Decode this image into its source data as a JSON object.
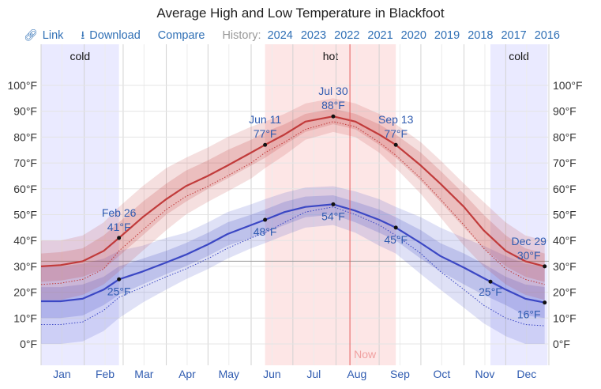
{
  "title": "Average High and Low Temperature in Blackfoot",
  "toolbar": {
    "link_icon": "link-icon",
    "link_label": "Link",
    "download_icon": "download-icon",
    "download_label": "Download",
    "compare_label": "Compare",
    "history_label": "History:",
    "years": [
      "2024",
      "2023",
      "2022",
      "2021",
      "2020",
      "2019",
      "2018",
      "2017",
      "2016"
    ]
  },
  "colors": {
    "high": "#c13b3b",
    "low": "#3b47c4",
    "hot_band": "#fde6e6",
    "cold_band": "#eaeaff",
    "now_line": "#e25a5a",
    "annotation": "#2f5bb0"
  },
  "chart_data": {
    "type": "line",
    "title": "Average High and Low Temperature in Blackfoot",
    "y_unit": "°F",
    "ylim": [
      -10,
      110
    ],
    "y_ticks": [
      "100°F",
      "90°F",
      "80°F",
      "70°F",
      "60°F",
      "50°F",
      "40°F",
      "30°F",
      "20°F",
      "10°F",
      "0°F"
    ],
    "y_tick_values": [
      100,
      90,
      80,
      70,
      60,
      50,
      40,
      30,
      20,
      10,
      0
    ],
    "months": [
      "Jan",
      "Feb",
      "Mar",
      "Apr",
      "May",
      "Jun",
      "Jul",
      "Aug",
      "Sep",
      "Oct",
      "Nov",
      "Dec"
    ],
    "grid": true,
    "reference_line_y": 32,
    "seasons": [
      {
        "label": "cold",
        "start": "Jan 1",
        "end": "Feb 26"
      },
      {
        "label": "hot",
        "start": "Jun 11",
        "end": "Sep 13"
      },
      {
        "label": "cold",
        "start": "Nov 20",
        "end": "Dec 31"
      }
    ],
    "now_label": "Now",
    "now_date": "Aug 11",
    "series": [
      {
        "name": "high",
        "x": [
          "Jan 1",
          "Jan 15",
          "Jan 31",
          "Feb 15",
          "Feb 26",
          "Mar 15",
          "Apr 1",
          "Apr 15",
          "May 1",
          "May 15",
          "Jun 1",
          "Jun 11",
          "Jun 25",
          "Jul 10",
          "Jul 30",
          "Aug 15",
          "Sep 1",
          "Sep 13",
          "Oct 1",
          "Oct 15",
          "Nov 1",
          "Nov 15",
          "Dec 1",
          "Dec 15",
          "Dec 29"
        ],
        "values": [
          30,
          30.5,
          32,
          36,
          41,
          49,
          56,
          61,
          65,
          69,
          74,
          77,
          81,
          86,
          88,
          86,
          81,
          77,
          69,
          62,
          53,
          44,
          36,
          32,
          30
        ],
        "p25": [
          24,
          24.5,
          26,
          29,
          34,
          42,
          50,
          55,
          60,
          64,
          69,
          72,
          77,
          82,
          85,
          83,
          77,
          72,
          63,
          55,
          45,
          37,
          30,
          26,
          24
        ],
        "p75": [
          35,
          35.5,
          37,
          42,
          47,
          55,
          62,
          67,
          71,
          75,
          79,
          82,
          85,
          89,
          91,
          89,
          85,
          81,
          74,
          67,
          58,
          50,
          42,
          37,
          35
        ],
        "p10": [
          17,
          17,
          19,
          23,
          28,
          36,
          44,
          50,
          55,
          59,
          64,
          68,
          73,
          79,
          82,
          80,
          74,
          68,
          58,
          49,
          38,
          30,
          23,
          19,
          17
        ],
        "p90": [
          40,
          40,
          42,
          47,
          53,
          61,
          68,
          72,
          76,
          80,
          84,
          86,
          89,
          93,
          95,
          93,
          89,
          85,
          78,
          71,
          62,
          55,
          47,
          42,
          40
        ],
        "dotted": [
          23,
          23.5,
          25,
          29,
          36,
          44,
          52,
          57,
          61,
          65,
          70,
          74,
          78,
          83,
          86,
          84,
          78,
          73,
          64,
          56,
          46,
          37,
          29,
          25,
          23
        ]
      },
      {
        "name": "low",
        "x": [
          "Jan 1",
          "Jan 15",
          "Jan 31",
          "Feb 15",
          "Feb 26",
          "Mar 15",
          "Apr 1",
          "Apr 15",
          "May 1",
          "May 15",
          "Jun 1",
          "Jun 11",
          "Jun 25",
          "Jul 10",
          "Jul 30",
          "Aug 15",
          "Sep 1",
          "Sep 13",
          "Oct 1",
          "Oct 15",
          "Nov 1",
          "Nov 15",
          "Dec 1",
          "Dec 15",
          "Dec 29"
        ],
        "values": [
          16.5,
          16.5,
          17.5,
          21,
          25,
          28,
          31.5,
          34.5,
          38.5,
          42.5,
          46,
          48,
          51,
          53,
          54,
          51.5,
          48,
          45,
          39,
          34,
          29.5,
          25.5,
          21,
          17.5,
          16
        ],
        "p25": [
          10,
          10,
          11,
          15,
          19,
          23,
          27,
          30,
          34,
          38,
          41,
          43,
          46,
          49,
          50,
          47,
          43,
          40,
          33,
          28,
          23,
          19,
          15,
          11,
          10
        ],
        "p75": [
          22,
          22,
          23,
          26,
          30,
          33,
          36,
          39,
          43,
          47,
          50,
          52,
          55,
          57,
          57.5,
          55,
          52,
          49,
          44,
          39,
          35,
          31,
          26,
          23,
          22
        ],
        "p10": [
          0,
          0,
          1,
          5,
          10,
          16,
          21,
          25,
          29,
          33,
          37,
          39,
          42,
          45,
          46,
          43,
          38,
          35,
          27,
          21,
          14,
          8,
          3,
          0,
          0
        ],
        "p90": [
          30,
          30,
          31,
          33,
          36,
          38,
          41,
          43,
          47,
          51,
          54,
          56,
          58.5,
          60.5,
          61,
          59,
          56,
          53,
          49,
          45,
          41,
          38,
          34,
          31,
          30
        ],
        "dotted": [
          7.5,
          7.5,
          8.5,
          13,
          18,
          22,
          26,
          29,
          33,
          37,
          41,
          43,
          47,
          51,
          53,
          50,
          46,
          42,
          35,
          28,
          21,
          15,
          10,
          7.5,
          7
        ]
      }
    ],
    "annotations": [
      {
        "date": "Feb 26",
        "value": "41°F",
        "series": "high",
        "position": "above"
      },
      {
        "date": "",
        "value": "25°F",
        "series": "low",
        "position": "below"
      },
      {
        "date": "Jun 11",
        "value": "77°F",
        "series": "high",
        "position": "above"
      },
      {
        "date": "",
        "value": "48°F",
        "series": "low",
        "position": "below"
      },
      {
        "date": "Jul 30",
        "value": "88°F",
        "series": "high",
        "position": "above"
      },
      {
        "date": "",
        "value": "54°F",
        "series": "low",
        "position": "below"
      },
      {
        "date": "Sep 13",
        "value": "77°F",
        "series": "high",
        "position": "above"
      },
      {
        "date": "",
        "value": "45°F",
        "series": "low",
        "position": "below"
      },
      {
        "date": "",
        "value": "25°F",
        "series": "low",
        "position": "left",
        "at": "Nov 20"
      },
      {
        "date": "Dec 29",
        "value": "30°F",
        "series": "high",
        "position": "above"
      },
      {
        "date": "",
        "value": "16°F",
        "series": "low",
        "position": "below"
      }
    ]
  }
}
